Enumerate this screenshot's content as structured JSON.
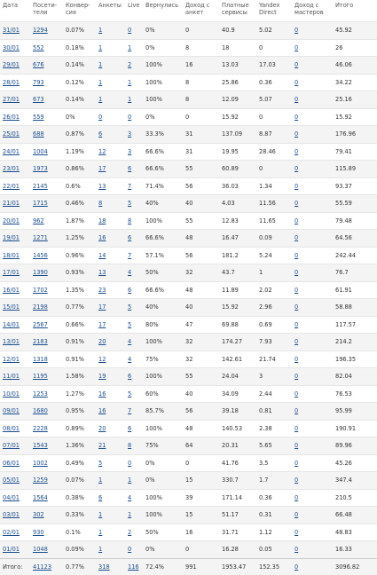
{
  "headers": {
    "date": "Дата",
    "visitors": "Посети-\nтели",
    "conversion": "Конвер-\nсия",
    "profiles": "Анкеты",
    "live": "Live",
    "returned": "Вернулись",
    "profile_income": "Доход с\nанкет",
    "paid_services": "Платные\nсервисы",
    "yandex_direct": "Yandex\nDirect",
    "master_income": "Доход с\nмастеров",
    "total": "Итого"
  },
  "rows": [
    {
      "date": "31/01",
      "visitors": "1294",
      "conversion": "0.07%",
      "profiles": "1",
      "live": "0",
      "returned": "0%",
      "profile_income": "0",
      "paid_services": "40.9",
      "yandex_direct": "5.02",
      "master_income": "0",
      "total": "45.92"
    },
    {
      "date": "30/01",
      "visitors": "552",
      "conversion": "0.18%",
      "profiles": "1",
      "live": "1",
      "returned": "0%",
      "profile_income": "8",
      "paid_services": "18",
      "yandex_direct": "0",
      "master_income": "0",
      "total": "26"
    },
    {
      "date": "29/01",
      "visitors": "676",
      "conversion": "0.14%",
      "profiles": "1",
      "live": "2",
      "returned": "100%",
      "profile_income": "16",
      "paid_services": "13.03",
      "yandex_direct": "17.03",
      "master_income": "0",
      "total": "46.06"
    },
    {
      "date": "28/01",
      "visitors": "793",
      "conversion": "0.12%",
      "profiles": "1",
      "live": "1",
      "returned": "100%",
      "profile_income": "8",
      "paid_services": "25.86",
      "yandex_direct": "0.36",
      "master_income": "0",
      "total": "34.22"
    },
    {
      "date": "27/01",
      "visitors": "673",
      "conversion": "0.14%",
      "profiles": "1",
      "live": "1",
      "returned": "100%",
      "profile_income": "8",
      "paid_services": "12.09",
      "yandex_direct": "5.07",
      "master_income": "0",
      "total": "25.16"
    },
    {
      "date": "26/01",
      "visitors": "559",
      "conversion": "0%",
      "profiles": "0",
      "live": "0",
      "returned": "0%",
      "profile_income": "0",
      "paid_services": "15.92",
      "yandex_direct": "0",
      "master_income": "0",
      "total": "15.92"
    },
    {
      "date": "25/01",
      "visitors": "688",
      "conversion": "0.87%",
      "profiles": "6",
      "live": "3",
      "returned": "33.3%",
      "profile_income": "31",
      "paid_services": "137.09",
      "yandex_direct": "8.87",
      "master_income": "0",
      "total": "176.96"
    },
    {
      "date": "24/01",
      "visitors": "1004",
      "conversion": "1.19%",
      "profiles": "12",
      "live": "3",
      "returned": "66.6%",
      "profile_income": "31",
      "paid_services": "19.95",
      "yandex_direct": "28.46",
      "master_income": "0",
      "total": "79.41"
    },
    {
      "date": "23/01",
      "visitors": "1973",
      "conversion": "0.86%",
      "profiles": "17",
      "live": "6",
      "returned": "66.6%",
      "profile_income": "55",
      "paid_services": "60.89",
      "yandex_direct": "0",
      "master_income": "0",
      "total": "115.89"
    },
    {
      "date": "22/01",
      "visitors": "2145",
      "conversion": "0.6%",
      "profiles": "13",
      "live": "7",
      "returned": "71.4%",
      "profile_income": "56",
      "paid_services": "36.03",
      "yandex_direct": "1.34",
      "master_income": "0",
      "total": "93.37"
    },
    {
      "date": "21/01",
      "visitors": "1715",
      "conversion": "0.46%",
      "profiles": "8",
      "live": "5",
      "returned": "40%",
      "profile_income": "40",
      "paid_services": "4.03",
      "yandex_direct": "11.56",
      "master_income": "0",
      "total": "55.59"
    },
    {
      "date": "20/01",
      "visitors": "962",
      "conversion": "1.87%",
      "profiles": "18",
      "live": "8",
      "returned": "100%",
      "profile_income": "55",
      "paid_services": "12.83",
      "yandex_direct": "11.65",
      "master_income": "0",
      "total": "79.48"
    },
    {
      "date": "19/01",
      "visitors": "1271",
      "conversion": "1.25%",
      "profiles": "16",
      "live": "6",
      "returned": "66.6%",
      "profile_income": "48",
      "paid_services": "16.47",
      "yandex_direct": "0.09",
      "master_income": "0",
      "total": "64.56"
    },
    {
      "date": "18/01",
      "visitors": "1456",
      "conversion": "0.96%",
      "profiles": "14",
      "live": "7",
      "returned": "57.1%",
      "profile_income": "56",
      "paid_services": "181.2",
      "yandex_direct": "5.24",
      "master_income": "0",
      "total": "242.44"
    },
    {
      "date": "17/01",
      "visitors": "1390",
      "conversion": "0.93%",
      "profiles": "13",
      "live": "4",
      "returned": "50%",
      "profile_income": "32",
      "paid_services": "43.7",
      "yandex_direct": "1",
      "master_income": "0",
      "total": "76.7"
    },
    {
      "date": "16/01",
      "visitors": "1702",
      "conversion": "1.35%",
      "profiles": "23",
      "live": "6",
      "returned": "66.6%",
      "profile_income": "48",
      "paid_services": "11.89",
      "yandex_direct": "2.02",
      "master_income": "0",
      "total": "61.91"
    },
    {
      "date": "15/01",
      "visitors": "2198",
      "conversion": "0.77%",
      "profiles": "17",
      "live": "5",
      "returned": "40%",
      "profile_income": "40",
      "paid_services": "15.92",
      "yandex_direct": "2.96",
      "master_income": "0",
      "total": "58.88"
    },
    {
      "date": "14/01",
      "visitors": "2567",
      "conversion": "0.66%",
      "profiles": "17",
      "live": "5",
      "returned": "80%",
      "profile_income": "47",
      "paid_services": "69.88",
      "yandex_direct": "0.69",
      "master_income": "0",
      "total": "117.57"
    },
    {
      "date": "13/01",
      "visitors": "2183",
      "conversion": "0.91%",
      "profiles": "20",
      "live": "4",
      "returned": "100%",
      "profile_income": "32",
      "paid_services": "174.27",
      "yandex_direct": "7.93",
      "master_income": "0",
      "total": "214.2"
    },
    {
      "date": "12/01",
      "visitors": "1318",
      "conversion": "0.91%",
      "profiles": "12",
      "live": "4",
      "returned": "75%",
      "profile_income": "32",
      "paid_services": "142.61",
      "yandex_direct": "21.74",
      "master_income": "0",
      "total": "196.35"
    },
    {
      "date": "11/01",
      "visitors": "1195",
      "conversion": "1.58%",
      "profiles": "19",
      "live": "6",
      "returned": "100%",
      "profile_income": "55",
      "paid_services": "24.04",
      "yandex_direct": "3",
      "master_income": "0",
      "total": "82.04"
    },
    {
      "date": "10/01",
      "visitors": "1253",
      "conversion": "1.27%",
      "profiles": "16",
      "live": "5",
      "returned": "60%",
      "profile_income": "40",
      "paid_services": "34.09",
      "yandex_direct": "2.44",
      "master_income": "0",
      "total": "76.53"
    },
    {
      "date": "09/01",
      "visitors": "1680",
      "conversion": "0.95%",
      "profiles": "16",
      "live": "7",
      "returned": "85.7%",
      "profile_income": "56",
      "paid_services": "39.18",
      "yandex_direct": "0.81",
      "master_income": "0",
      "total": "95.99"
    },
    {
      "date": "08/01",
      "visitors": "2228",
      "conversion": "0.89%",
      "profiles": "20",
      "live": "6",
      "returned": "100%",
      "profile_income": "48",
      "paid_services": "140.53",
      "yandex_direct": "2.38",
      "master_income": "0",
      "total": "190.91"
    },
    {
      "date": "07/01",
      "visitors": "1543",
      "conversion": "1.36%",
      "profiles": "21",
      "live": "8",
      "returned": "75%",
      "profile_income": "64",
      "paid_services": "20.31",
      "yandex_direct": "5.65",
      "master_income": "0",
      "total": "89.96"
    },
    {
      "date": "06/01",
      "visitors": "1002",
      "conversion": "0.49%",
      "profiles": "5",
      "live": "0",
      "returned": "0%",
      "profile_income": "0",
      "paid_services": "41.76",
      "yandex_direct": "3.5",
      "master_income": "0",
      "total": "45.26"
    },
    {
      "date": "05/01",
      "visitors": "1259",
      "conversion": "0.07%",
      "profiles": "1",
      "live": "1",
      "returned": "0%",
      "profile_income": "15",
      "paid_services": "330.7",
      "yandex_direct": "1.7",
      "master_income": "0",
      "total": "347.4"
    },
    {
      "date": "04/01",
      "visitors": "1564",
      "conversion": "0.38%",
      "profiles": "6",
      "live": "4",
      "returned": "100%",
      "profile_income": "39",
      "paid_services": "171.14",
      "yandex_direct": "0.36",
      "master_income": "0",
      "total": "210.5"
    },
    {
      "date": "03/01",
      "visitors": "302",
      "conversion": "0.33%",
      "profiles": "1",
      "live": "1",
      "returned": "100%",
      "profile_income": "15",
      "paid_services": "51.17",
      "yandex_direct": "0.31",
      "master_income": "0",
      "total": "66.48"
    },
    {
      "date": "02/01",
      "visitors": "930",
      "conversion": "0.1%",
      "profiles": "1",
      "live": "2",
      "returned": "50%",
      "profile_income": "16",
      "paid_services": "31.71",
      "yandex_direct": "1.12",
      "master_income": "0",
      "total": "48.83"
    },
    {
      "date": "01/01",
      "visitors": "1048",
      "conversion": "0.09%",
      "profiles": "1",
      "live": "0",
      "returned": "0%",
      "profile_income": "0",
      "paid_services": "16.28",
      "yandex_direct": "0.05",
      "master_income": "0",
      "total": "16.33"
    }
  ],
  "totals": {
    "label": "Итого:",
    "visitors": "41123",
    "conversion": "0.77%",
    "profiles": "318",
    "live": "116",
    "returned": "72.4%",
    "profile_income": "991",
    "paid_services": "1953.47",
    "yandex_direct": "152.35",
    "master_income": "0",
    "total": "3096.82"
  }
}
